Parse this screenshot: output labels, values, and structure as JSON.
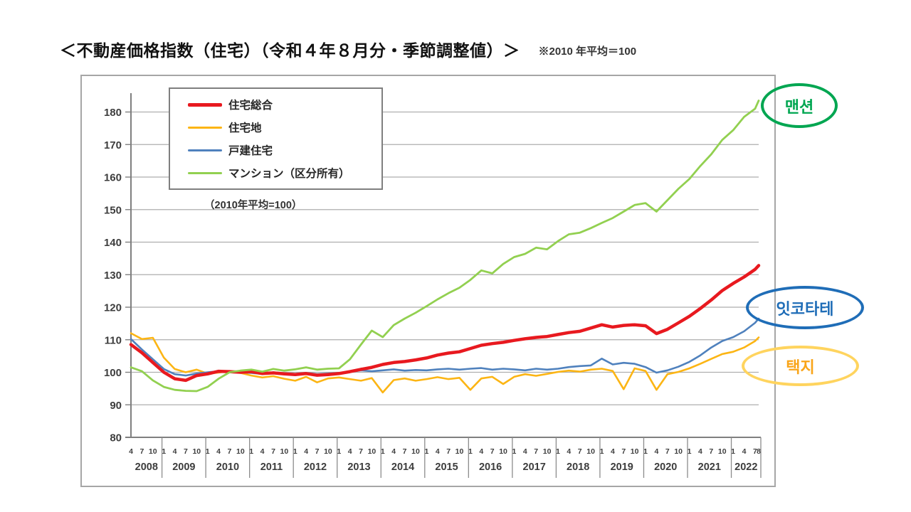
{
  "page": {
    "title": "＜不動産価格指数（住宅）（令和４年８月分・季節調整値）＞",
    "title_note": "※2010 年平均＝100"
  },
  "legend": {
    "items": [
      {
        "label": "住宅総合",
        "color": "#e8191f"
      },
      {
        "label": "住宅地",
        "color": "#fcb514"
      },
      {
        "label": "戸建住宅",
        "color": "#4f81bd"
      },
      {
        "label": "マンション（区分所有）",
        "color": "#92d050"
      }
    ],
    "note": "（2010年平均=100）"
  },
  "annotations": [
    {
      "text": "맨션",
      "border_color": "#00a651",
      "text_color": "#00a651"
    },
    {
      "text": "잇코타테",
      "border_color": "#1f6db7",
      "text_color": "#1f6db7"
    },
    {
      "text": "택지",
      "border_color": "#ffd45e",
      "text_color": "#f9a51a"
    }
  ],
  "chart_data": {
    "type": "line",
    "title": "不動産価格指数（住宅）（令和4年8月分・季節調整値）",
    "subtitle": "2010年平均=100",
    "xlabel": "",
    "ylabel": "",
    "ylim": [
      80,
      186
    ],
    "yticks": [
      80,
      90,
      100,
      110,
      120,
      130,
      140,
      150,
      160,
      170,
      180
    ],
    "grid": true,
    "legend_position": "top-left",
    "x_unit": "months since 2008-04 (monthly series, ticks at Jan/Apr/Jul/Oct)",
    "offsets": [
      0,
      3,
      6,
      9,
      12,
      15,
      18,
      21,
      24,
      27,
      30,
      33,
      36,
      39,
      42,
      45,
      48,
      51,
      54,
      57,
      60,
      63,
      66,
      69,
      72,
      75,
      78,
      81,
      84,
      87,
      90,
      93,
      96,
      99,
      102,
      105,
      108,
      111,
      114,
      117,
      120,
      123,
      126,
      129,
      132,
      135,
      138,
      141,
      144,
      147,
      150,
      153,
      156,
      159,
      162,
      165,
      168,
      171,
      172
    ],
    "x_axis": {
      "years": [
        {
          "label": "2008",
          "months": [
            "4",
            "7",
            "10"
          ]
        },
        {
          "label": "2009",
          "months": [
            "1",
            "4",
            "7",
            "10"
          ]
        },
        {
          "label": "2010",
          "months": [
            "1",
            "4",
            "7",
            "10"
          ]
        },
        {
          "label": "2011",
          "months": [
            "1",
            "4",
            "7",
            "10"
          ]
        },
        {
          "label": "2012",
          "months": [
            "1",
            "4",
            "7",
            "10"
          ]
        },
        {
          "label": "2013",
          "months": [
            "1",
            "4",
            "7",
            "10"
          ]
        },
        {
          "label": "2014",
          "months": [
            "1",
            "4",
            "7",
            "10"
          ]
        },
        {
          "label": "2015",
          "months": [
            "1",
            "4",
            "7",
            "10"
          ]
        },
        {
          "label": "2016",
          "months": [
            "1",
            "4",
            "7",
            "10"
          ]
        },
        {
          "label": "2017",
          "months": [
            "1",
            "4",
            "7",
            "10"
          ]
        },
        {
          "label": "2018",
          "months": [
            "1",
            "4",
            "7",
            "10"
          ]
        },
        {
          "label": "2019",
          "months": [
            "1",
            "4",
            "7",
            "10"
          ]
        },
        {
          "label": "2020",
          "months": [
            "1",
            "4",
            "7",
            "10"
          ]
        },
        {
          "label": "2021",
          "months": [
            "1",
            "4",
            "7",
            "10"
          ]
        },
        {
          "label": "2022",
          "months": [
            "1",
            "4",
            "7",
            "8"
          ]
        }
      ]
    },
    "series": [
      {
        "key": "jutaku-sogo",
        "name": "住宅総合",
        "color": "#e8191f",
        "values": [
          108.5,
          106.0,
          103.0,
          100.0,
          98.0,
          97.5,
          99.0,
          99.5,
          100.3,
          100.2,
          100.0,
          100.2,
          99.6,
          99.8,
          99.5,
          99.3,
          99.6,
          99.1,
          99.3,
          99.6,
          100.2,
          100.9,
          101.5,
          102.4,
          103.0,
          103.3,
          103.8,
          104.4,
          105.3,
          105.9,
          106.3,
          107.3,
          108.3,
          108.8,
          109.2,
          109.8,
          110.3,
          110.7,
          111.0,
          111.6,
          112.2,
          112.6,
          113.6,
          114.6,
          113.9,
          114.4,
          114.6,
          114.3,
          111.9,
          113.2,
          115.2,
          117.2,
          119.6,
          122.2,
          125.1,
          127.3,
          129.3,
          131.6,
          132.8
        ]
      },
      {
        "key": "jutakuchi",
        "name": "住宅地",
        "color": "#fcb514",
        "values": [
          112.0,
          110.2,
          110.6,
          104.5,
          101.0,
          100.0,
          100.8,
          99.6,
          99.9,
          100.4,
          99.8,
          99.0,
          98.4,
          98.8,
          98.0,
          97.4,
          98.6,
          96.9,
          98.1,
          98.4,
          97.9,
          97.4,
          98.2,
          93.8,
          97.6,
          98.1,
          97.4,
          97.9,
          98.5,
          97.9,
          98.3,
          94.6,
          98.1,
          98.6,
          96.4,
          98.6,
          99.4,
          98.9,
          99.5,
          100.1,
          100.5,
          100.2,
          100.8,
          101.1,
          100.4,
          94.8,
          101.2,
          100.4,
          94.6,
          99.4,
          100.1,
          101.2,
          102.6,
          104.1,
          105.6,
          106.3,
          107.6,
          109.6,
          110.7
        ]
      },
      {
        "key": "kodate-jutaku",
        "name": "戸建住宅",
        "color": "#4f81bd",
        "values": [
          110.2,
          107.0,
          104.0,
          101.0,
          99.4,
          99.0,
          99.6,
          100.0,
          100.3,
          100.2,
          100.0,
          99.8,
          99.5,
          100.0,
          99.7,
          99.5,
          99.8,
          99.4,
          99.6,
          99.8,
          100.1,
          100.6,
          100.3,
          100.6,
          100.9,
          100.5,
          100.7,
          100.6,
          100.9,
          101.1,
          100.8,
          101.1,
          101.3,
          100.8,
          101.1,
          100.9,
          100.6,
          101.1,
          100.8,
          101.1,
          101.6,
          101.9,
          102.1,
          104.2,
          102.4,
          102.9,
          102.6,
          101.6,
          99.9,
          100.6,
          101.7,
          103.2,
          105.2,
          107.6,
          109.6,
          110.8,
          112.6,
          115.2,
          116.5
        ]
      },
      {
        "key": "mansion",
        "name": "マンション（区分所有）",
        "color": "#92d050",
        "values": [
          101.5,
          100.3,
          97.5,
          95.5,
          94.6,
          94.3,
          94.2,
          95.5,
          98.0,
          100.0,
          100.5,
          100.8,
          100.2,
          101.0,
          100.5,
          100.9,
          101.5,
          100.8,
          101.1,
          101.2,
          104.0,
          108.5,
          112.8,
          110.8,
          114.5,
          116.5,
          118.3,
          120.3,
          122.4,
          124.3,
          126.0,
          128.4,
          131.3,
          130.4,
          133.3,
          135.4,
          136.4,
          138.3,
          137.8,
          140.3,
          142.4,
          142.9,
          144.3,
          145.9,
          147.4,
          149.4,
          151.4,
          152.0,
          149.4,
          152.9,
          156.4,
          159.4,
          163.4,
          167.0,
          171.4,
          174.4,
          178.5,
          181.0,
          183.5
        ]
      }
    ]
  }
}
